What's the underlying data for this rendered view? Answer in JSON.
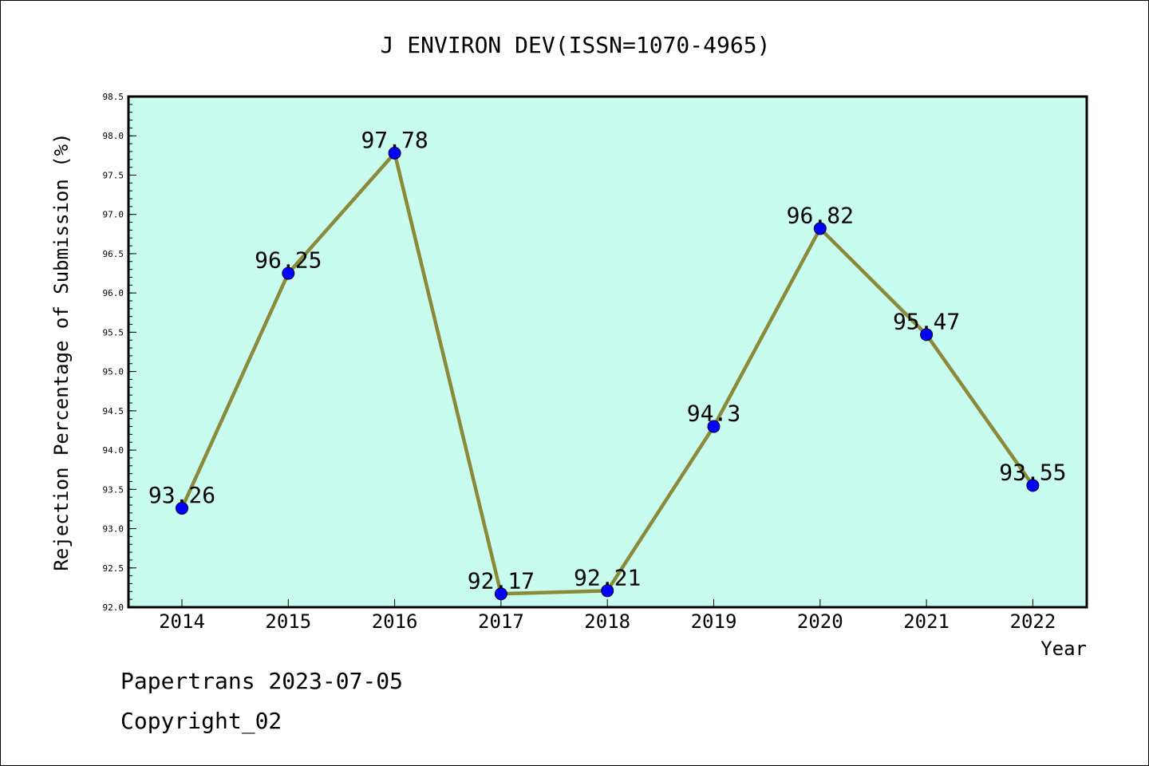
{
  "chart_data": {
    "type": "line",
    "title": "J ENVIRON DEV(ISSN=1070-4965)",
    "xlabel": "Year",
    "ylabel": "Rejection Percentage of Submission (%)",
    "categories": [
      "2014",
      "2015",
      "2016",
      "2017",
      "2018",
      "2019",
      "2020",
      "2021",
      "2022"
    ],
    "values": [
      93.26,
      96.25,
      97.78,
      92.17,
      92.21,
      94.3,
      96.82,
      95.47,
      93.55
    ],
    "data_labels": [
      "93.26",
      "96.25",
      "97.78",
      "92.17",
      "92.21",
      "94.3",
      "96.82",
      "95.47",
      "93.55"
    ],
    "ylim": [
      92.0,
      98.5
    ],
    "y_ticks": [
      "92.0",
      "92.5",
      "93.0",
      "93.5",
      "94.0",
      "94.5",
      "95.0",
      "95.5",
      "96.0",
      "96.5",
      "97.0",
      "97.5",
      "98.0",
      "98.5"
    ],
    "grid": false,
    "legend": "none",
    "colors": {
      "plot_background": "#c8fcee",
      "line": "#8b8a3a",
      "marker": "#0000ff"
    }
  },
  "footer": {
    "line1": "Papertrans 2023-07-05",
    "line2": "Copyright_02"
  }
}
